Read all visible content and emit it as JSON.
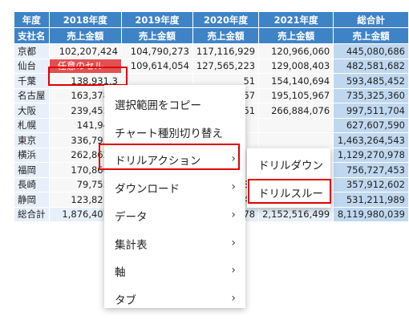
{
  "table": {
    "year_headers": [
      "年度",
      "2018年度",
      "2019年度",
      "2020年度",
      "2021年度",
      "総合計"
    ],
    "measure_headers": [
      "支社名",
      "売上金額",
      "売上金額",
      "売上金額",
      "売上金額",
      "売上金額"
    ],
    "rows": [
      [
        "京都",
        "102,207,424",
        "104,790,273",
        "117,116,929",
        "120,966,060",
        "445,080,686"
      ],
      [
        "仙台",
        "任意のセル",
        "109,614,054",
        "127,565,223",
        "129,008,403",
        "482,581,682"
      ],
      [
        "千葉",
        "138,931,3",
        "",
        "51",
        "154,140,694",
        "593,485,452"
      ],
      [
        "名古屋",
        "163,378,3",
        "",
        "57",
        "195,105,967",
        "735,325,360"
      ],
      [
        "大阪",
        "239,455,9",
        "",
        "51",
        "266,884,076",
        "997,511,704"
      ],
      [
        "札幌",
        "141,947,",
        "",
        "",
        "",
        "627,607,590"
      ],
      [
        "東京",
        "336,793,1",
        "",
        "",
        "",
        "1,463,264,543"
      ],
      [
        "横浜",
        "262,862,9",
        "",
        "",
        "",
        "1,129,270,978"
      ],
      [
        "福岡",
        "170,860,5",
        "",
        "",
        "",
        "756,727,453"
      ],
      [
        "長崎",
        "79,755,0",
        "",
        "39",
        "94,629,232",
        "357,912,602"
      ],
      [
        "静岡",
        "123,821,2",
        "",
        "47",
        "139,971,434",
        "531,211,989"
      ],
      [
        "総合計",
        "1,876,407,6",
        "",
        "78",
        "2,152,516,499",
        "8,119,980,039"
      ]
    ]
  },
  "context_menu": {
    "items": [
      {
        "label": "選択範囲をコピー",
        "arrow": ""
      },
      {
        "label": "チャート種別切り替え",
        "arrow": ""
      },
      {
        "label": "ドリルアクション",
        "arrow": "›"
      },
      {
        "label": "ダウンロード",
        "arrow": "›"
      },
      {
        "label": "データ",
        "arrow": "›"
      },
      {
        "label": "集計表",
        "arrow": "›"
      },
      {
        "label": "軸",
        "arrow": "›"
      },
      {
        "label": "タブ",
        "arrow": "›"
      }
    ]
  },
  "submenu": {
    "items": [
      {
        "label": "ドリルダウン"
      },
      {
        "label": "ドリルスルー"
      }
    ]
  },
  "colors": {
    "header": "#3f83c7",
    "selected_cell": "#e25151",
    "highlight_border": "#e00000",
    "total_column": "#bfd8ef"
  }
}
